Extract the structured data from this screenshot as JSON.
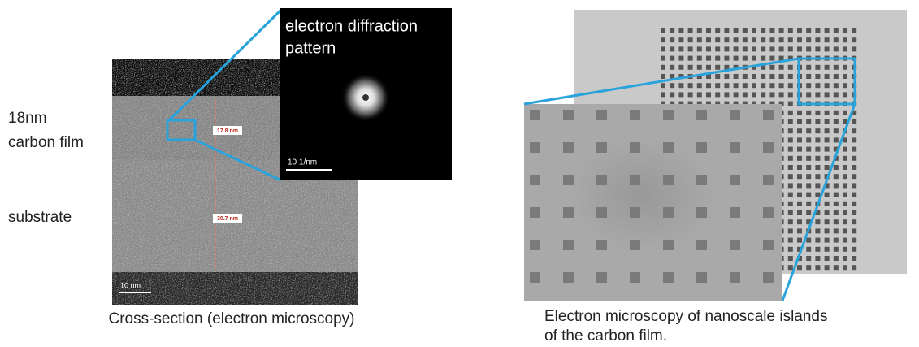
{
  "left_panel": {
    "film_label": [
      "18nm",
      "carbon film"
    ],
    "substrate_label": "substrate",
    "measurements": [
      "17.8 nm",
      "30.7 nm"
    ],
    "scale_bar": "10 nm",
    "inset": {
      "title": [
        "electron diffraction",
        "pattern"
      ],
      "scale_bar": "10 1/nm"
    },
    "caption": "Cross-section (electron microscopy)"
  },
  "right_panel": {
    "caption": [
      "Electron microscopy of nanoscale islands",
      "of the carbon film."
    ]
  }
}
